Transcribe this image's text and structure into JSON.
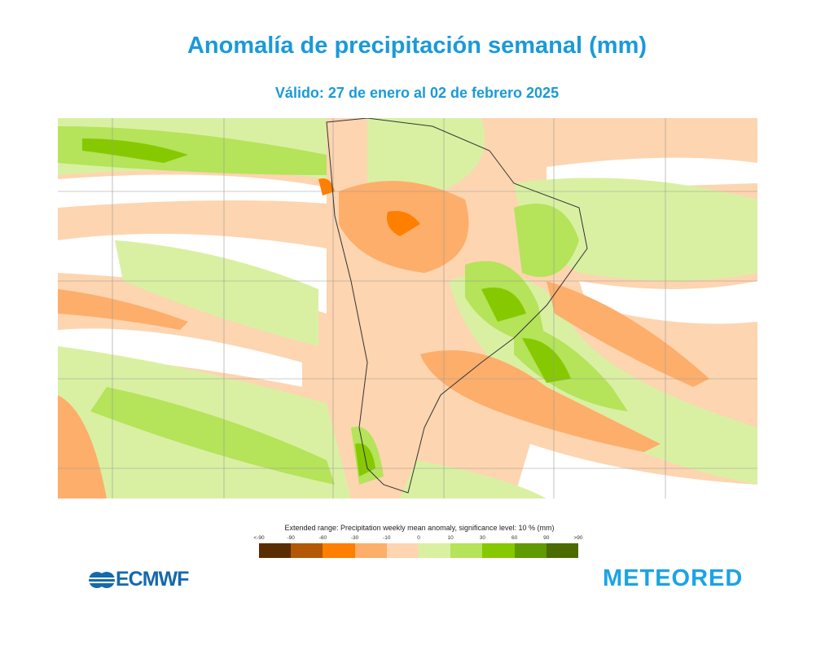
{
  "title": "Anomalía de precipitación semanal (mm)",
  "subtitle": "Válido: 27 de enero al 02 de febrero 2025",
  "legend": {
    "title": "Extended range: Precipitation weekly mean anomaly, significance level: 10 % (mm)",
    "ticks": [
      "<-90",
      "-90",
      "-60",
      "-30",
      "-10",
      "0",
      "10",
      "30",
      "60",
      "90",
      ">90"
    ],
    "colors": [
      "#5a2d00",
      "#b35806",
      "#ff7f00",
      "#fdae6b",
      "#fdd5b0",
      "#d9f0a3",
      "#b5e35a",
      "#86c900",
      "#5e9a00",
      "#4a6b00"
    ]
  },
  "logos": {
    "left": "ECMWF",
    "right": "METEORED"
  }
}
